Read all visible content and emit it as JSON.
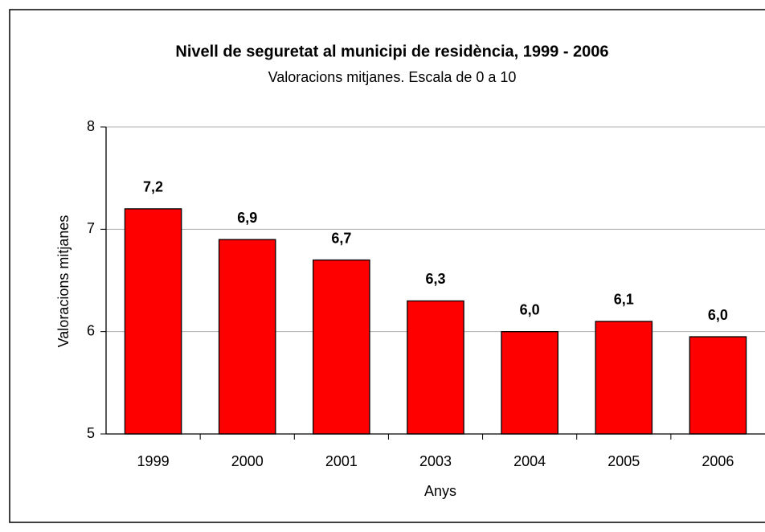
{
  "chart_data": {
    "type": "bar",
    "title": "Nivell de seguretat al municipi de residència, 1999 - 2006",
    "subtitle": "Valoracions mitjanes. Escala de 0 a 10",
    "x_label": "Anys",
    "y_label": "Valoracions mitjanes",
    "categories": [
      "1999",
      "2000",
      "2001",
      "2003",
      "2004",
      "2005",
      "2006"
    ],
    "values": [
      7.2,
      6.9,
      6.7,
      6.3,
      6.0,
      6.1,
      5.95
    ],
    "value_labels": [
      "7,2",
      "6,9",
      "6,7",
      "6,3",
      "6,0",
      "6,1",
      "6,0"
    ],
    "color": "#ff0000",
    "ylim": [
      5,
      8
    ],
    "yticks": [
      5,
      6,
      7,
      8
    ],
    "grid": true
  }
}
